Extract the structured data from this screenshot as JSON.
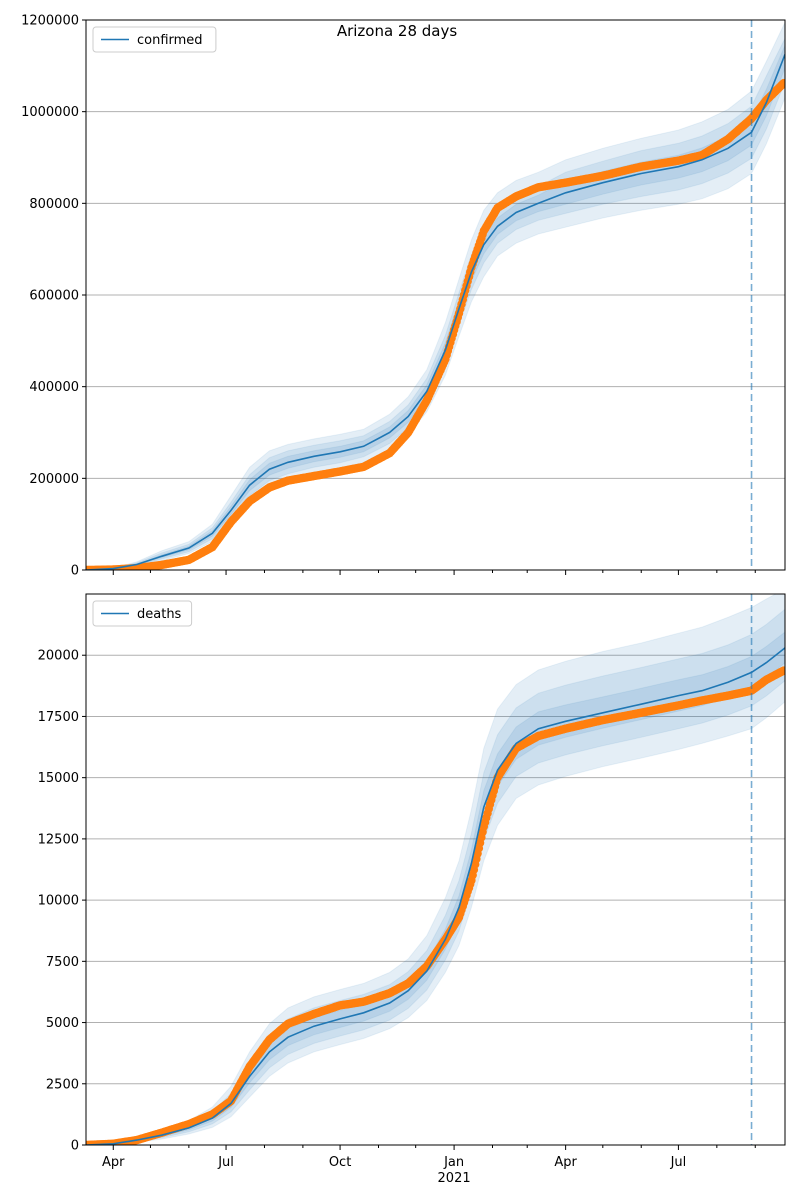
{
  "figure": {
    "title": "Arizona 28 days"
  },
  "chart_data": [
    {
      "type": "line",
      "name": "confirmed",
      "x_ticks": [
        "Apr",
        "Jul",
        "Oct",
        "Jan",
        "Apr",
        "Jul"
      ],
      "x_year_label": "2021",
      "x_range": [
        "2020-03-10",
        "2021-09-25"
      ],
      "y_range": [
        0,
        1200000
      ],
      "y_ticks": [
        0,
        200000,
        400000,
        600000,
        800000,
        1000000,
        1200000
      ],
      "legend": {
        "entries": [
          "confirmed"
        ],
        "position": "top-left"
      },
      "grid": "horizontal",
      "forecast_start": "2021-08-29",
      "colors": {
        "model": "#1f77b4",
        "observed": "#ff7f0e",
        "band": "#1f77b4"
      },
      "model_line": {
        "x": [
          "2020-03-10",
          "2020-04-01",
          "2020-04-20",
          "2020-05-10",
          "2020-06-01",
          "2020-06-20",
          "2020-07-05",
          "2020-07-20",
          "2020-08-05",
          "2020-08-20",
          "2020-09-10",
          "2020-10-01",
          "2020-10-20",
          "2020-11-10",
          "2020-11-25",
          "2020-12-10",
          "2020-12-25",
          "2021-01-05",
          "2021-01-15",
          "2021-01-25",
          "2021-02-05",
          "2021-02-20",
          "2021-03-10",
          "2021-04-01",
          "2021-05-01",
          "2021-06-01",
          "2021-07-01",
          "2021-07-20",
          "2021-08-10",
          "2021-08-29",
          "2021-09-10",
          "2021-09-25"
        ],
        "y": [
          0,
          3000,
          12000,
          30000,
          48000,
          80000,
          130000,
          185000,
          220000,
          235000,
          248000,
          258000,
          270000,
          300000,
          335000,
          390000,
          480000,
          570000,
          650000,
          710000,
          750000,
          780000,
          800000,
          823000,
          845000,
          865000,
          880000,
          895000,
          920000,
          955000,
          1020000,
          1125000
        ]
      },
      "observed": {
        "x": [
          "2020-03-10",
          "2020-04-01",
          "2020-04-20",
          "2020-05-10",
          "2020-06-01",
          "2020-06-20",
          "2020-07-05",
          "2020-07-20",
          "2020-08-05",
          "2020-08-20",
          "2020-09-10",
          "2020-10-01",
          "2020-10-20",
          "2020-11-10",
          "2020-11-25",
          "2020-12-10",
          "2020-12-25",
          "2021-01-05",
          "2021-01-15",
          "2021-01-25",
          "2021-02-05",
          "2021-02-20",
          "2021-03-10",
          "2021-04-01",
          "2021-05-01",
          "2021-06-01",
          "2021-07-01",
          "2021-07-20",
          "2021-08-10",
          "2021-08-29",
          "2021-09-10",
          "2021-09-25"
        ],
        "y": [
          0,
          1000,
          4000,
          11000,
          22000,
          50000,
          105000,
          150000,
          180000,
          195000,
          205000,
          215000,
          225000,
          255000,
          300000,
          370000,
          460000,
          560000,
          660000,
          740000,
          790000,
          815000,
          835000,
          845000,
          860000,
          880000,
          893000,
          905000,
          940000,
          985000,
          1025000,
          1065000
        ]
      },
      "bands": [
        {
          "lo": [
            0,
            1500,
            7000,
            20000,
            36000,
            62000,
            100000,
            148000,
            182000,
            198000,
            212000,
            222000,
            235000,
            262000,
            295000,
            345000,
            425000,
            510000,
            585000,
            640000,
            685000,
            713000,
            733000,
            748000,
            768000,
            785000,
            798000,
            810000,
            832000,
            865000,
            930000,
            1030000
          ],
          "hi": [
            0,
            4500,
            18000,
            42000,
            62000,
            100000,
            162000,
            224000,
            260000,
            274000,
            286000,
            296000,
            307000,
            340000,
            378000,
            437000,
            540000,
            635000,
            720000,
            785000,
            823000,
            850000,
            868000,
            895000,
            920000,
            942000,
            960000,
            978000,
            1005000,
            1045000,
            1110000,
            1195000
          ]
        },
        {
          "lo": [
            0,
            2000,
            9000,
            24000,
            40000,
            68000,
            112000,
            162000,
            195000,
            210000,
            224000,
            234000,
            247000,
            276000,
            310000,
            362000,
            448000,
            535000,
            612000,
            670000,
            713000,
            743000,
            763000,
            778000,
            798000,
            815000,
            829000,
            843000,
            866000,
            898000,
            962000,
            1065000
          ],
          "hi": [
            0,
            4000,
            15500,
            37000,
            56000,
            92000,
            148000,
            208000,
            245000,
            260000,
            272000,
            282000,
            293000,
            324000,
            360000,
            418000,
            512000,
            605000,
            688000,
            750000,
            787000,
            817000,
            837000,
            868000,
            892000,
            915000,
            931000,
            947000,
            974000,
            1012000,
            1078000,
            1160000
          ]
        },
        {
          "lo": [
            0,
            2500,
            10500,
            27000,
            44000,
            74000,
            121000,
            173000,
            207000,
            222000,
            236000,
            246000,
            258000,
            288000,
            322000,
            376000,
            464000,
            552000,
            631000,
            690000,
            732000,
            762000,
            782000,
            798000,
            820000,
            840000,
            855000,
            869000,
            893000,
            927000,
            991000,
            1095000
          ],
          "hi": [
            0,
            3500,
            13500,
            33000,
            52000,
            86000,
            139000,
            197000,
            233000,
            248000,
            260000,
            270000,
            282000,
            312000,
            348000,
            404000,
            496000,
            588000,
            669000,
            730000,
            768000,
            798000,
            818000,
            848000,
            870000,
            890000,
            905000,
            921000,
            947000,
            983000,
            1049000,
            1145000
          ]
        }
      ]
    },
    {
      "type": "line",
      "name": "deaths",
      "x_ticks": [
        "Apr",
        "Jul",
        "Oct",
        "Jan",
        "Apr",
        "Jul"
      ],
      "x_year_label": "2021",
      "x_range": [
        "2020-03-10",
        "2021-09-25"
      ],
      "y_range": [
        0,
        22500
      ],
      "y_ticks": [
        0,
        2500,
        5000,
        7500,
        10000,
        12500,
        15000,
        17500,
        20000
      ],
      "legend": {
        "entries": [
          "deaths"
        ],
        "position": "top-left"
      },
      "grid": "horizontal",
      "forecast_start": "2021-08-29",
      "colors": {
        "model": "#1f77b4",
        "observed": "#ff7f0e",
        "band": "#1f77b4"
      },
      "model_line": {
        "x": [
          "2020-03-10",
          "2020-04-01",
          "2020-04-20",
          "2020-05-10",
          "2020-06-01",
          "2020-06-20",
          "2020-07-05",
          "2020-07-20",
          "2020-08-05",
          "2020-08-20",
          "2020-09-10",
          "2020-10-01",
          "2020-10-20",
          "2020-11-10",
          "2020-11-25",
          "2020-12-10",
          "2020-12-25",
          "2021-01-05",
          "2021-01-15",
          "2021-01-25",
          "2021-02-05",
          "2021-02-20",
          "2021-03-10",
          "2021-04-01",
          "2021-05-01",
          "2021-06-01",
          "2021-07-01",
          "2021-07-20",
          "2021-08-10",
          "2021-08-29",
          "2021-09-10",
          "2021-09-25"
        ],
        "y": [
          0,
          50,
          200,
          400,
          700,
          1100,
          1700,
          2800,
          3800,
          4400,
          4850,
          5150,
          5400,
          5800,
          6300,
          7100,
          8400,
          9700,
          11500,
          13800,
          15300,
          16400,
          17000,
          17300,
          17650,
          18000,
          18350,
          18550,
          18900,
          19300,
          19700,
          20300
        ]
      },
      "observed": {
        "x": [
          "2020-03-10",
          "2020-04-01",
          "2020-04-20",
          "2020-05-10",
          "2020-06-01",
          "2020-06-20",
          "2020-07-05",
          "2020-07-20",
          "2020-08-05",
          "2020-08-20",
          "2020-09-10",
          "2020-10-01",
          "2020-10-20",
          "2020-11-10",
          "2020-11-25",
          "2020-12-10",
          "2020-12-25",
          "2021-01-05",
          "2021-01-15",
          "2021-01-25",
          "2021-02-05",
          "2021-02-20",
          "2021-03-10",
          "2021-04-01",
          "2021-05-01",
          "2021-06-01",
          "2021-07-01",
          "2021-07-20",
          "2021-08-10",
          "2021-08-29",
          "2021-09-10",
          "2021-09-25"
        ],
        "y": [
          0,
          50,
          200,
          500,
          850,
          1250,
          1800,
          3200,
          4300,
          4950,
          5350,
          5700,
          5850,
          6200,
          6600,
          7300,
          8400,
          9300,
          10800,
          13000,
          15000,
          16200,
          16700,
          17000,
          17350,
          17650,
          17950,
          18150,
          18350,
          18550,
          19000,
          19400
        ]
      },
      "bands": [
        {
          "lo": [
            0,
            25,
            110,
            240,
            450,
            720,
            1150,
            1950,
            2800,
            3350,
            3800,
            4100,
            4350,
            4750,
            5200,
            5900,
            7050,
            8150,
            9700,
            11600,
            13050,
            14150,
            14700,
            15050,
            15450,
            15800,
            16150,
            16400,
            16700,
            17000,
            17450,
            18100
          ],
          "hi": [
            0,
            90,
            310,
            580,
            1000,
            1550,
            2400,
            3800,
            4950,
            5600,
            6050,
            6350,
            6600,
            7050,
            7600,
            8550,
            10100,
            11600,
            13700,
            16200,
            17800,
            18800,
            19400,
            19750,
            20150,
            20500,
            20900,
            21150,
            21550,
            21950,
            22300,
            22700
          ]
        },
        {
          "lo": [
            0,
            35,
            140,
            300,
            540,
            860,
            1350,
            2250,
            3150,
            3700,
            4150,
            4450,
            4700,
            5100,
            5580,
            6330,
            7560,
            8740,
            10390,
            12450,
            13950,
            15050,
            15600,
            15930,
            16300,
            16650,
            17000,
            17230,
            17560,
            17930,
            18340,
            18960
          ],
          "hi": [
            0,
            70,
            270,
            510,
            880,
            1370,
            2100,
            3400,
            4500,
            5150,
            5600,
            5900,
            6150,
            6550,
            7080,
            7940,
            9380,
            10800,
            12730,
            15200,
            16750,
            17850,
            18450,
            18780,
            19150,
            19500,
            19850,
            20070,
            20420,
            20850,
            21260,
            21880
          ]
        },
        {
          "lo": [
            0,
            42,
            170,
            350,
            620,
            980,
            1530,
            2540,
            3480,
            4060,
            4500,
            4800,
            5060,
            5460,
            5950,
            6730,
            7990,
            9230,
            10970,
            13150,
            14650,
            15750,
            16330,
            16650,
            17020,
            17370,
            17720,
            17940,
            18280,
            18660,
            19070,
            19690
          ],
          "hi": [
            0,
            60,
            235,
            450,
            790,
            1230,
            1880,
            3070,
            4120,
            4750,
            5200,
            5500,
            5750,
            6150,
            6660,
            7480,
            8820,
            10180,
            12050,
            14470,
            15970,
            17070,
            17690,
            17970,
            18300,
            18650,
            19000,
            19200,
            19540,
            19950,
            20360,
            20950
          ]
        }
      ]
    }
  ]
}
